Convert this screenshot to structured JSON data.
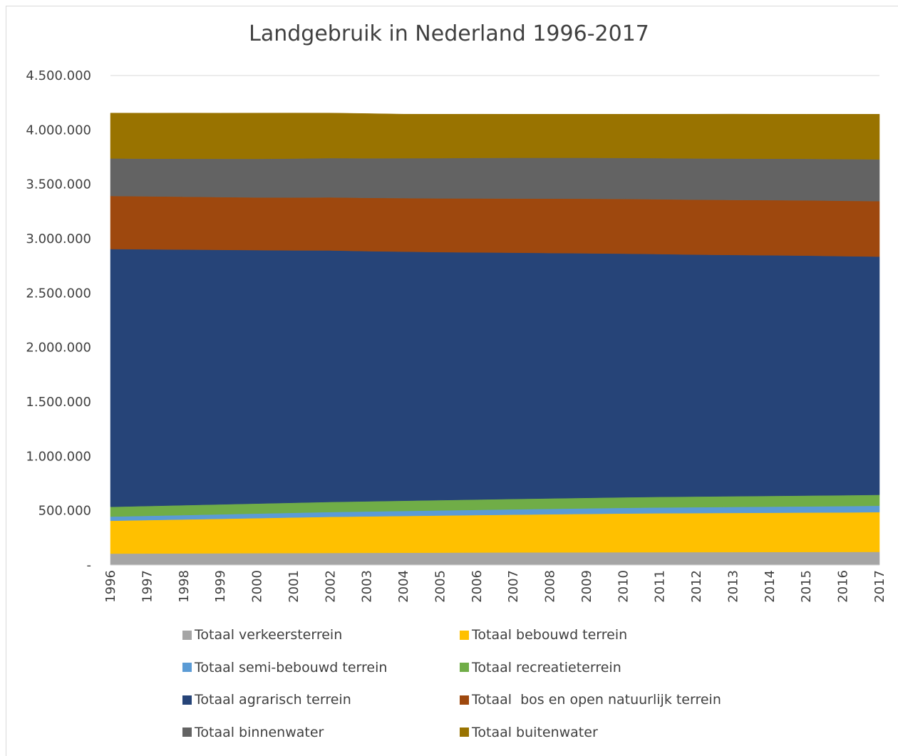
{
  "chart_data": {
    "type": "area",
    "stacked": true,
    "title": "Landgebruik in Nederland 1996-2017",
    "xlabel": "",
    "ylabel": "",
    "ylim": [
      0,
      4500000
    ],
    "yticks": [
      {
        "value": 0,
        "label": "-"
      },
      {
        "value": 500000,
        "label": "500.000"
      },
      {
        "value": 1000000,
        "label": "1.000.000"
      },
      {
        "value": 1500000,
        "label": "1.500.000"
      },
      {
        "value": 2000000,
        "label": "2.000.000"
      },
      {
        "value": 2500000,
        "label": "2.500.000"
      },
      {
        "value": 3000000,
        "label": "3.000.000"
      },
      {
        "value": 3500000,
        "label": "3.500.000"
      },
      {
        "value": 4000000,
        "label": "4.000.000"
      },
      {
        "value": 4500000,
        "label": "4.500.000"
      }
    ],
    "grid": "horizontal",
    "legend_position": "bottom",
    "categories": [
      "1996",
      "1997",
      "1998",
      "1999",
      "2000",
      "2001",
      "2002",
      "2003",
      "2004",
      "2005",
      "2006",
      "2007",
      "2008",
      "2009",
      "2010",
      "2011",
      "2012",
      "2013",
      "2014",
      "2015",
      "2016",
      "2017"
    ],
    "series": [
      {
        "name": "Totaal verkeersterrein",
        "color": "#a5a5a5",
        "values": [
          105000,
          106000,
          107000,
          108000,
          109000,
          110000,
          111000,
          112000,
          113000,
          114000,
          115000,
          116000,
          116500,
          117000,
          117500,
          118000,
          118500,
          119000,
          119500,
          120000,
          120500,
          121000
        ]
      },
      {
        "name": "Totaal bebouwd terrein",
        "color": "#ffc000",
        "values": [
          302000,
          307000,
          312000,
          317000,
          322000,
          327000,
          332000,
          335000,
          338000,
          341000,
          344000,
          347000,
          350000,
          353000,
          356000,
          358000,
          359000,
          360000,
          361000,
          362000,
          363000,
          365000
        ]
      },
      {
        "name": "Totaal semi-bebouwd terrein",
        "color": "#5b9bd5",
        "values": [
          38000,
          39000,
          40000,
          41000,
          42000,
          43000,
          44000,
          45000,
          46000,
          47000,
          48000,
          49000,
          50000,
          51000,
          52000,
          53000,
          54000,
          55000,
          56000,
          57000,
          58000,
          59000
        ]
      },
      {
        "name": "Totaal recreatieterrein",
        "color": "#70ad47",
        "values": [
          90000,
          90500,
          91000,
          91500,
          92000,
          92500,
          93000,
          93500,
          94000,
          94500,
          95000,
          95500,
          96000,
          96500,
          97000,
          97500,
          98000,
          98500,
          99000,
          99500,
          100000,
          100500
        ]
      },
      {
        "name": "Totaal agrarisch terrein",
        "color": "#264478",
        "values": [
          2370000,
          2360000,
          2350000,
          2340000,
          2330000,
          2320000,
          2312000,
          2300000,
          2290000,
          2280000,
          2272000,
          2264000,
          2256000,
          2248000,
          2240000,
          2232000,
          2224000,
          2218000,
          2212000,
          2206000,
          2198000,
          2190000
        ]
      },
      {
        "name": "Totaal  bos en open natuurlijk terrein",
        "color": "#9e480e",
        "values": [
          488000,
          487000,
          486000,
          485000,
          484000,
          486000,
          488000,
          490000,
          492000,
          494000,
          496000,
          498000,
          500000,
          502000,
          503000,
          504000,
          505000,
          506000,
          507000,
          508000,
          509000,
          510000
        ]
      },
      {
        "name": "Totaal binnenwater",
        "color": "#636363",
        "values": [
          345000,
          346000,
          349000,
          352000,
          355000,
          358000,
          361000,
          364000,
          367000,
          370000,
          373000,
          374000,
          375000,
          376000,
          377000,
          378000,
          379000,
          380000,
          381000,
          382000,
          383000,
          384000
        ]
      },
      {
        "name": "Totaal buitenwater",
        "color": "#997300",
        "values": [
          417000,
          419000,
          420000,
          420000,
          421000,
          419000,
          414000,
          411000,
          405000,
          404000,
          402000,
          401000,
          401000,
          401000,
          402000,
          404000,
          407000,
          409000,
          409000,
          410000,
          413000,
          415000
        ]
      }
    ]
  }
}
